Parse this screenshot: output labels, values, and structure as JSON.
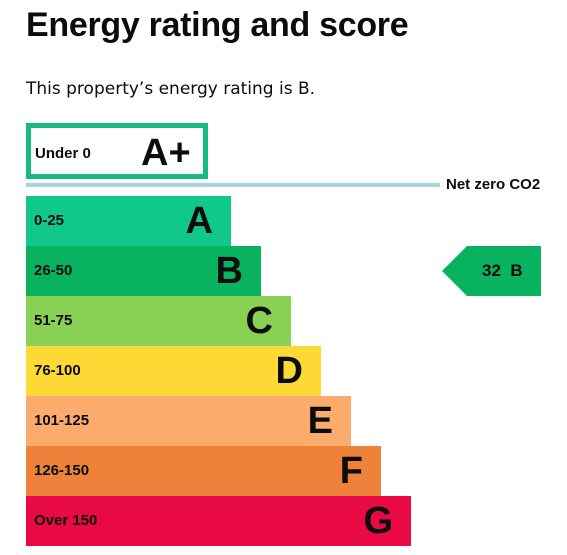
{
  "page": {
    "title": "Energy rating and score",
    "summary": "This property’s energy rating is B."
  },
  "chart_data": {
    "type": "bar",
    "categories": [
      "A+",
      "A",
      "B",
      "C",
      "D",
      "E",
      "F",
      "G"
    ],
    "bands": [
      {
        "letter": "A+",
        "range": "Under 0",
        "color": "#17ba83",
        "style": "outlined"
      },
      {
        "letter": "A",
        "range": "0-25",
        "color": "#0fc88a"
      },
      {
        "letter": "B",
        "range": "26-50",
        "color": "#08b25e"
      },
      {
        "letter": "C",
        "range": "51-75",
        "color": "#8ad055"
      },
      {
        "letter": "D",
        "range": "76-100",
        "color": "#fdd936"
      },
      {
        "letter": "E",
        "range": "101-125",
        "color": "#fbab6c"
      },
      {
        "letter": "F",
        "range": "126-150",
        "color": "#ee823b"
      },
      {
        "letter": "G",
        "range": "Over 150",
        "color": "#e90a45"
      }
    ],
    "threshold": {
      "label": "Net zero CO2",
      "color": "#a6d4df"
    },
    "current": {
      "score": 32,
      "rating": "B",
      "label": "32  B",
      "color": "#08b25e"
    }
  }
}
